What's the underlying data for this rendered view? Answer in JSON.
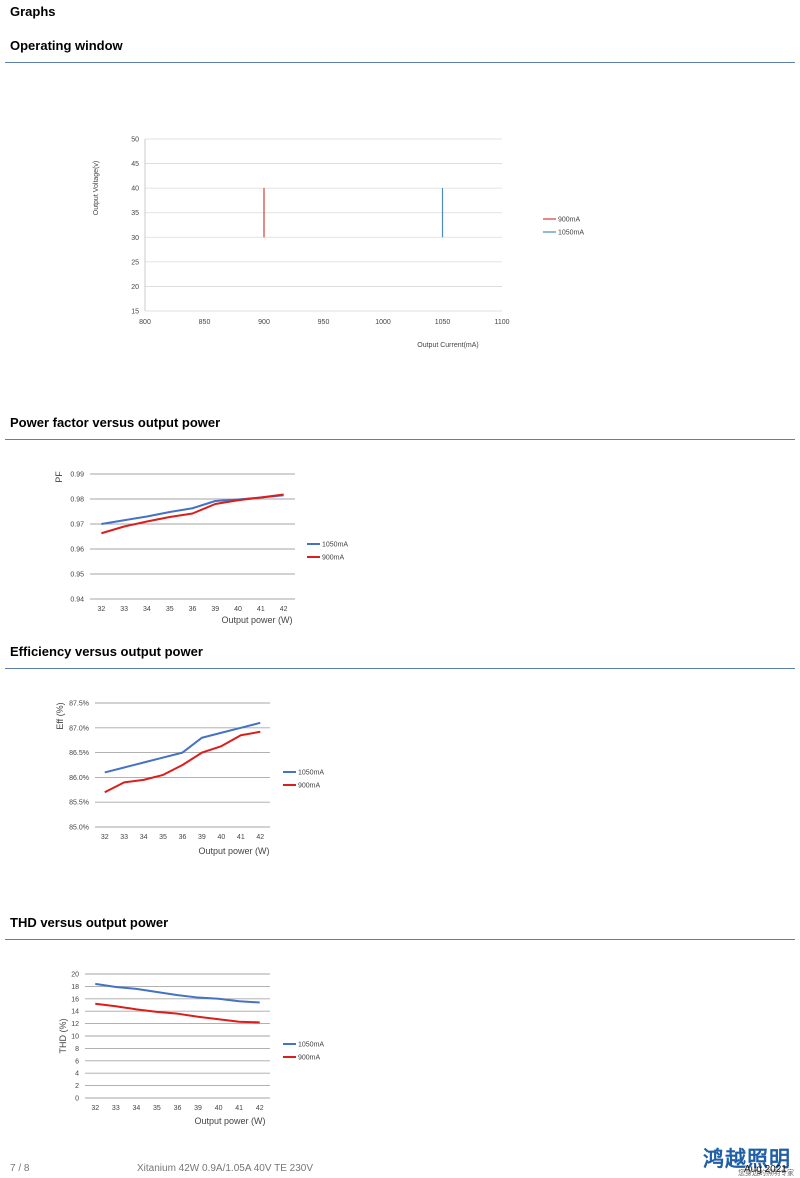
{
  "page": {
    "title": "Graphs",
    "footer_page": "7 / 8",
    "footer_product": "Xitanium 42W 0.9A/1.05A 40V TE 230V",
    "footer_date": "Aug 2021",
    "logo_text": "鸿越照明",
    "logo_subtext": "您身边的照明专家"
  },
  "sections": {
    "operating_window": "Operating window",
    "power_factor": "Power factor versus output power",
    "efficiency": "Efficiency versus output power",
    "thd": "THD versus output power"
  },
  "chart_data": [
    {
      "id": "operating-window",
      "type": "line",
      "title": "",
      "xlabel": "Output Current(mA)",
      "ylabel": "Output Voltage(v)",
      "xlim": [
        800,
        1100
      ],
      "ylim": [
        15,
        50
      ],
      "xticks": [
        "800",
        "850",
        "900",
        "950",
        "1000",
        "1050",
        "1100"
      ],
      "yticks": [
        "15",
        "20",
        "25",
        "30",
        "35",
        "40",
        "45",
        "50"
      ],
      "grid": true,
      "legend": "right",
      "series": [
        {
          "name": "900mA",
          "color": "#d93b3b",
          "points": [
            [
              900,
              30
            ],
            [
              900,
              40
            ]
          ]
        },
        {
          "name": "1050mA",
          "color": "#4a8bbf",
          "points": [
            [
              1050,
              30
            ],
            [
              1050,
              40
            ]
          ]
        }
      ]
    },
    {
      "id": "power-factor",
      "type": "line",
      "title": "",
      "xlabel": "Output power (W)",
      "ylabel": "PF",
      "categories": [
        "32",
        "33",
        "34",
        "35",
        "36",
        "39",
        "40",
        "41",
        "42"
      ],
      "ylim": [
        0.94,
        0.99
      ],
      "yticks": [
        "0.94",
        "0.95",
        "0.96",
        "0.97",
        "0.98",
        "0.99"
      ],
      "grid": true,
      "legend": "right",
      "series": [
        {
          "name": "1050mA",
          "color": "#4472c4",
          "values": [
            0.97,
            0.9715,
            0.973,
            0.9748,
            0.9763,
            0.9792,
            0.9798,
            0.9806,
            0.9815
          ]
        },
        {
          "name": "900mA",
          "color": "#dd1c1c",
          "values": [
            0.9663,
            0.969,
            0.971,
            0.9728,
            0.9742,
            0.978,
            0.9795,
            0.9806,
            0.9818
          ]
        }
      ]
    },
    {
      "id": "efficiency",
      "type": "line",
      "title": "",
      "xlabel": "Output power (W)",
      "ylabel": "Eff (%)",
      "categories": [
        "32",
        "33",
        "34",
        "35",
        "36",
        "39",
        "40",
        "41",
        "42"
      ],
      "ylim": [
        85.0,
        87.5
      ],
      "yticks": [
        "85.0%",
        "85.5%",
        "86.0%",
        "86.5%",
        "87.0%",
        "87.5%"
      ],
      "grid": true,
      "legend": "right",
      "series": [
        {
          "name": "1050mA",
          "color": "#4472c4",
          "values": [
            86.1,
            86.2,
            86.3,
            86.4,
            86.5,
            86.8,
            86.9,
            87.0,
            87.1
          ]
        },
        {
          "name": "900mA",
          "color": "#dd1c1c",
          "values": [
            85.7,
            85.9,
            85.95,
            86.05,
            86.25,
            86.5,
            86.63,
            86.85,
            86.92
          ]
        }
      ]
    },
    {
      "id": "thd",
      "type": "line",
      "title": "",
      "xlabel": "Output power (W)",
      "ylabel": "THD (%)",
      "categories": [
        "32",
        "33",
        "34",
        "35",
        "36",
        "39",
        "40",
        "41",
        "42"
      ],
      "ylim": [
        0,
        20
      ],
      "yticks": [
        "0",
        "2",
        "4",
        "6",
        "8",
        "10",
        "12",
        "14",
        "16",
        "18",
        "20"
      ],
      "grid": true,
      "legend": "right",
      "series": [
        {
          "name": "1050mA",
          "color": "#4472c4",
          "values": [
            18.4,
            17.9,
            17.6,
            17.1,
            16.6,
            16.2,
            16.0,
            15.6,
            15.4
          ]
        },
        {
          "name": "900mA",
          "color": "#dd1c1c",
          "values": [
            15.2,
            14.8,
            14.3,
            13.9,
            13.6,
            13.1,
            12.7,
            12.3,
            12.2
          ]
        }
      ]
    }
  ]
}
